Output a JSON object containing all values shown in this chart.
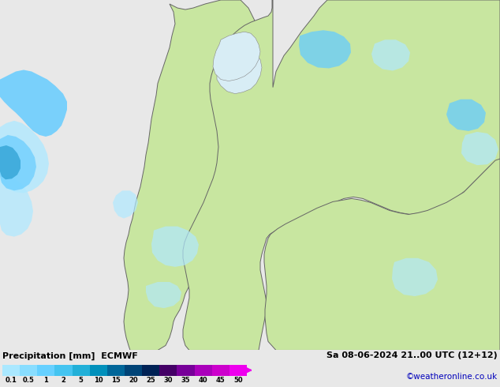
{
  "title_left": "Precipitation [mm]  ECMWF",
  "title_right": "Sa 08-06-2024 21..00 UTC (12+12)",
  "credit": "©weatheronline.co.uk",
  "colorbar_labels": [
    "0.1",
    "0.5",
    "1",
    "2",
    "5",
    "10",
    "15",
    "20",
    "25",
    "30",
    "35",
    "40",
    "45",
    "50"
  ],
  "colorbar_colors": [
    "#aae8ff",
    "#88ddff",
    "#66d0ff",
    "#44c4f0",
    "#22b0d8",
    "#0090bb",
    "#006699",
    "#004477",
    "#002255",
    "#440066",
    "#770099",
    "#aa00bb",
    "#cc00cc",
    "#ee00ee"
  ],
  "sea_color": "#d8edf5",
  "land_color": "#c8e6a0",
  "bg_color": "#e8e8e8",
  "text_color": "#000000",
  "credit_color": "#0000bb",
  "precip_light": "#b0e8ff",
  "precip_mid": "#66ccff",
  "precip_dark": "#2299cc",
  "fig_width": 6.34,
  "fig_height": 4.9,
  "dpi": 100
}
